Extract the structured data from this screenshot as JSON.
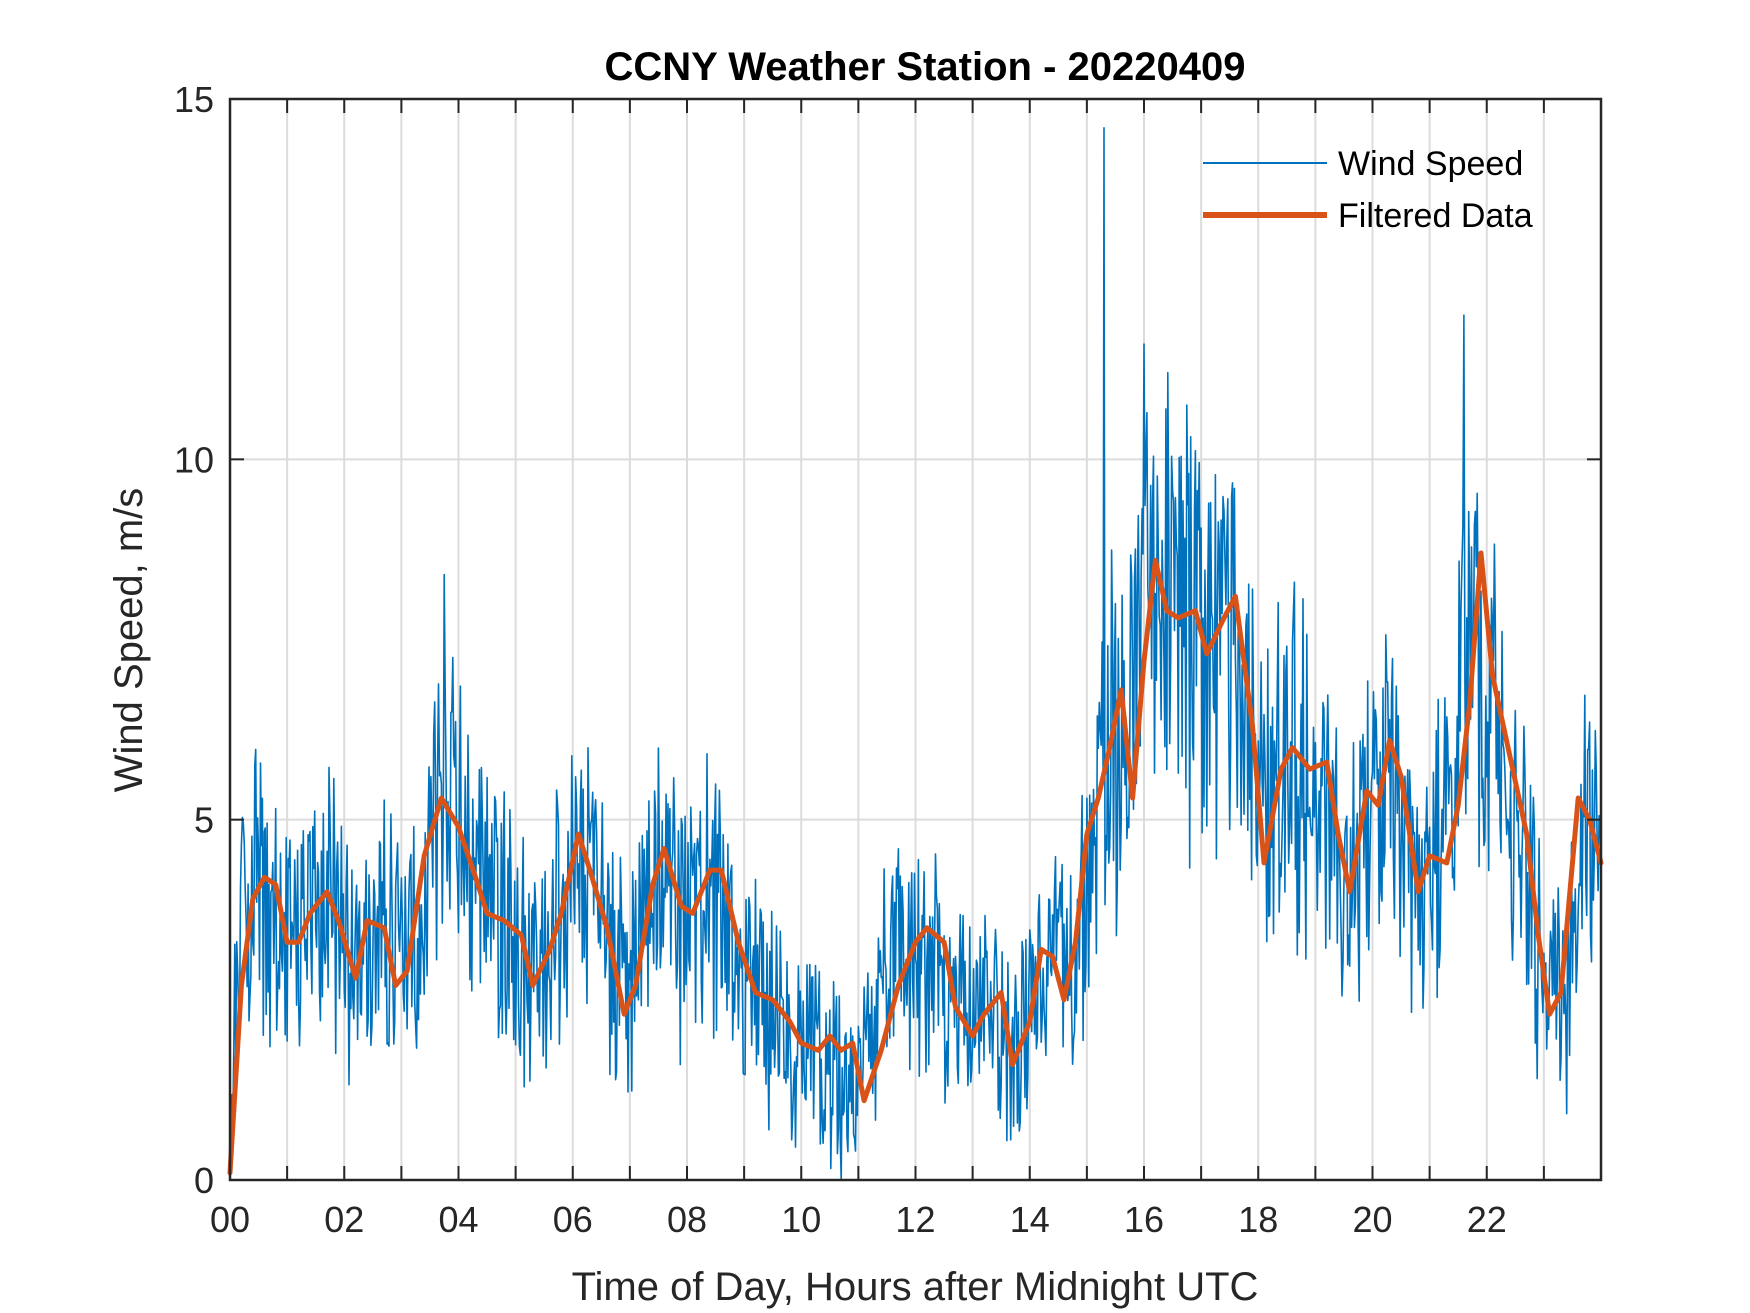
{
  "chart_data": {
    "type": "line",
    "title": "CCNY Weather Station - 20220409",
    "xlabel": "Time of Day, Hours after Midnight UTC",
    "ylabel": "Wind Speed, m/s",
    "xlim": [
      0,
      24
    ],
    "ylim": [
      0,
      15
    ],
    "x_ticks": [
      0,
      2,
      4,
      6,
      8,
      10,
      12,
      14,
      16,
      18,
      20,
      22
    ],
    "x_tick_labels": [
      "00",
      "02",
      "04",
      "06",
      "08",
      "10",
      "12",
      "14",
      "16",
      "18",
      "20",
      "22"
    ],
    "x_minor_gridlines": [
      1,
      3,
      5,
      7,
      9,
      11,
      13,
      15,
      17,
      19,
      21,
      23
    ],
    "y_ticks": [
      0,
      5,
      10,
      15
    ],
    "y_tick_labels": [
      "0",
      "5",
      "10",
      "15"
    ],
    "grid": true,
    "legend_position": "top-right",
    "series": [
      {
        "name": "Wind Speed",
        "color": "#0072BD",
        "style": "noisy-raw",
        "x": [
          0,
          0.2,
          0.5,
          0.8,
          1.0,
          1.3,
          1.6,
          2.0,
          2.2,
          2.5,
          2.8,
          3.0,
          3.3,
          3.6,
          3.9,
          4.2,
          4.5,
          4.8,
          5.0,
          5.3,
          5.6,
          5.9,
          6.1,
          6.4,
          6.7,
          7.0,
          7.3,
          7.6,
          7.9,
          8.2,
          8.5,
          8.8,
          9.1,
          9.4,
          9.7,
          10.0,
          10.3,
          10.6,
          10.8,
          11.0,
          11.3,
          11.6,
          11.9,
          12.2,
          12.5,
          12.8,
          13.1,
          13.4,
          13.7,
          14.0,
          14.3,
          14.6,
          14.9,
          15.1,
          15.3,
          15.5,
          15.7,
          15.9,
          16.1,
          16.3,
          16.6,
          16.9,
          17.2,
          17.5,
          17.8,
          18.0,
          18.3,
          18.6,
          18.9,
          19.2,
          19.5,
          19.8,
          20.0,
          20.2,
          20.5,
          20.8,
          21.1,
          21.4,
          21.6,
          21.8,
          22.0,
          22.3,
          22.6,
          22.9,
          23.1,
          23.4,
          23.7,
          24.0
        ],
        "values": [
          0.5,
          3.6,
          4.0,
          3.7,
          3.3,
          3.5,
          3.9,
          3.4,
          2.9,
          3.7,
          3.5,
          2.8,
          3.4,
          5.0,
          5.2,
          4.4,
          3.7,
          3.5,
          3.0,
          2.8,
          3.6,
          3.8,
          4.7,
          4.4,
          3.2,
          2.4,
          3.8,
          4.5,
          3.8,
          3.8,
          4.3,
          3.0,
          2.6,
          2.4,
          2.0,
          1.8,
          1.9,
          1.6,
          1.2,
          1.3,
          2.3,
          3.1,
          3.4,
          3.4,
          2.8,
          2.1,
          2.3,
          2.3,
          1.7,
          2.5,
          3.0,
          3.2,
          3.4,
          4.9,
          6.0,
          6.5,
          5.6,
          7.2,
          8.3,
          7.8,
          7.7,
          7.6,
          7.5,
          7.9,
          6.7,
          4.9,
          5.8,
          5.7,
          5.8,
          5.0,
          4.3,
          4.8,
          5.5,
          6.0,
          4.5,
          4.2,
          4.4,
          5.6,
          6.9,
          8.2,
          6.4,
          5.5,
          4.4,
          3.3,
          2.6,
          2.5,
          5.0,
          4.3
        ],
        "notable_spikes": [
          {
            "x": 3.75,
            "value": 8.4
          },
          {
            "x": 15.3,
            "value": 14.6
          },
          {
            "x": 16.0,
            "value": 11.6
          },
          {
            "x": 21.6,
            "value": 12.0
          },
          {
            "x": 10.7,
            "value": 0.0
          }
        ]
      },
      {
        "name": "Filtered Data",
        "color": "#D95319",
        "style": "smooth",
        "x": [
          0,
          0.2,
          0.4,
          0.6,
          0.8,
          1.0,
          1.2,
          1.4,
          1.7,
          1.9,
          2.2,
          2.4,
          2.7,
          2.9,
          3.1,
          3.4,
          3.7,
          4.0,
          4.3,
          4.5,
          4.8,
          5.1,
          5.3,
          5.6,
          5.8,
          6.1,
          6.3,
          6.6,
          6.9,
          7.1,
          7.4,
          7.6,
          7.9,
          8.1,
          8.4,
          8.6,
          8.9,
          9.2,
          9.5,
          9.8,
          10.0,
          10.3,
          10.5,
          10.7,
          10.9,
          11.1,
          11.4,
          11.7,
          12.0,
          12.2,
          12.5,
          12.7,
          13.0,
          13.2,
          13.5,
          13.7,
          14.0,
          14.2,
          14.4,
          14.6,
          14.8,
          15.0,
          15.2,
          15.4,
          15.6,
          15.8,
          16.0,
          16.2,
          16.4,
          16.6,
          16.9,
          17.1,
          17.4,
          17.6,
          17.9,
          18.1,
          18.4,
          18.6,
          18.9,
          19.2,
          19.4,
          19.6,
          19.9,
          20.1,
          20.3,
          20.5,
          20.8,
          21.0,
          21.3,
          21.5,
          21.7,
          21.9,
          22.1,
          22.4,
          22.7,
          22.9,
          23.1,
          23.3,
          23.6,
          23.8,
          24.0
        ],
        "values": [
          0.1,
          2.7,
          3.9,
          4.2,
          4.1,
          3.3,
          3.3,
          3.7,
          4.0,
          3.6,
          2.8,
          3.6,
          3.5,
          2.7,
          2.9,
          4.5,
          5.3,
          4.9,
          4.2,
          3.7,
          3.6,
          3.4,
          2.7,
          3.2,
          3.7,
          4.8,
          4.3,
          3.5,
          2.3,
          2.7,
          4.1,
          4.6,
          3.8,
          3.7,
          4.3,
          4.3,
          3.3,
          2.6,
          2.5,
          2.2,
          1.9,
          1.8,
          2.0,
          1.8,
          1.9,
          1.1,
          1.8,
          2.7,
          3.3,
          3.5,
          3.3,
          2.4,
          2.0,
          2.3,
          2.6,
          1.6,
          2.2,
          3.2,
          3.1,
          2.5,
          3.3,
          4.8,
          5.3,
          6.0,
          6.8,
          5.3,
          7.2,
          8.6,
          7.9,
          7.8,
          7.9,
          7.3,
          7.8,
          8.1,
          6.3,
          4.4,
          5.7,
          6.0,
          5.7,
          5.8,
          4.8,
          4.0,
          5.4,
          5.2,
          6.1,
          5.6,
          4.0,
          4.5,
          4.4,
          5.2,
          6.6,
          8.7,
          7.0,
          5.9,
          4.8,
          3.4,
          2.3,
          2.6,
          5.3,
          5.0,
          4.4
        ]
      }
    ]
  }
}
